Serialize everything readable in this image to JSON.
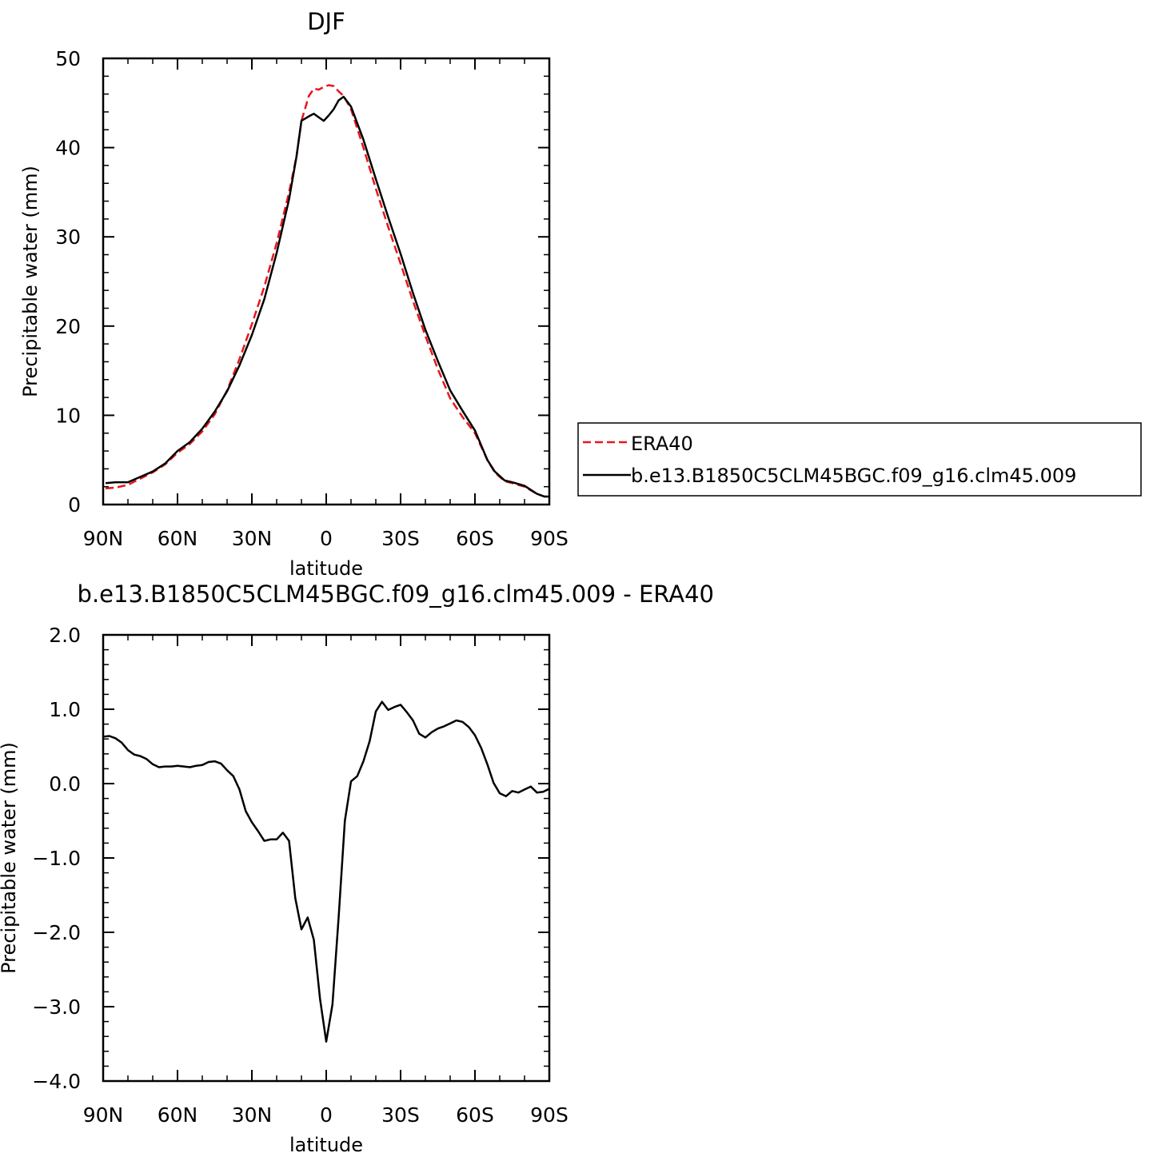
{
  "chart_data": [
    {
      "type": "line",
      "title": "DJF",
      "xlabel": "latitude",
      "ylabel": "Precipitable water (mm)",
      "xlim": [
        90,
        -90
      ],
      "ylim": [
        0,
        50
      ],
      "xticks": [
        90,
        60,
        30,
        0,
        -30,
        -60,
        -90
      ],
      "xtick_labels": [
        "90N",
        "60N",
        "30N",
        "0",
        "30S",
        "60S",
        "90S"
      ],
      "yticks": [
        0,
        10,
        20,
        30,
        40,
        50
      ],
      "ytick_labels": [
        "0",
        "10",
        "20",
        "30",
        "40",
        "50"
      ],
      "grid": false,
      "legend_position": "right",
      "series": [
        {
          "name": "ERA40",
          "color": "#e8161b",
          "dash": "dashed",
          "x": [
            89,
            85,
            80,
            75,
            70,
            65,
            60,
            55,
            50,
            45,
            40,
            35,
            30,
            25,
            20,
            15,
            12,
            10,
            7,
            5,
            3,
            1,
            -1,
            -3,
            -5,
            -7,
            -10,
            -15,
            -20,
            -25,
            -30,
            -35,
            -40,
            -45,
            -50,
            -55,
            -60,
            -65,
            -68,
            -72,
            -75,
            -80,
            -85,
            -88,
            -90
          ],
          "values": [
            1.8,
            1.9,
            2.2,
            2.9,
            3.6,
            4.5,
            5.8,
            6.8,
            8.2,
            10.1,
            12.8,
            16.3,
            20.2,
            24.4,
            29.3,
            35.0,
            39.0,
            43.0,
            45.8,
            46.6,
            46.5,
            46.8,
            47.0,
            46.9,
            46.3,
            45.8,
            44.3,
            40.0,
            35.4,
            31.1,
            27.0,
            22.8,
            18.9,
            15.2,
            11.9,
            9.8,
            8.0,
            5.0,
            3.6,
            2.6,
            2.4,
            2.0,
            1.2,
            0.9,
            0.9
          ]
        },
        {
          "name": "b.e13.B1850C5CLM45BGC.f09_g16.clm45.009",
          "color": "#000000",
          "dash": "solid",
          "x": [
            89,
            85,
            80,
            75,
            70,
            65,
            60,
            55,
            50,
            45,
            40,
            35,
            30,
            25,
            20,
            15,
            12,
            10,
            7,
            5,
            3,
            1,
            -1,
            -3,
            -5,
            -7,
            -10,
            -15,
            -20,
            -25,
            -30,
            -35,
            -40,
            -45,
            -50,
            -55,
            -60,
            -65,
            -68,
            -72,
            -75,
            -80,
            -85,
            -88,
            -90
          ],
          "values": [
            2.4,
            2.5,
            2.5,
            3.1,
            3.7,
            4.6,
            6.0,
            7.0,
            8.5,
            10.4,
            12.7,
            15.6,
            19.0,
            23.0,
            28.2,
            34.2,
            39.0,
            43.0,
            43.5,
            43.8,
            43.4,
            43.0,
            43.6,
            44.3,
            45.3,
            45.7,
            44.6,
            40.9,
            36.5,
            32.2,
            28.1,
            23.7,
            19.6,
            16.1,
            12.8,
            10.5,
            8.3,
            5.0,
            3.7,
            2.7,
            2.5,
            2.1,
            1.2,
            0.9,
            0.9
          ]
        }
      ]
    },
    {
      "type": "line",
      "title": "b.e13.B1850C5CLM45BGC.f09_g16.clm45.009  -  ERA40",
      "xlabel": "latitude",
      "ylabel": "Precipitable water (mm)",
      "xlim": [
        90,
        -90
      ],
      "ylim": [
        -4.0,
        2.0
      ],
      "xticks": [
        90,
        60,
        30,
        0,
        -30,
        -60,
        -90
      ],
      "xtick_labels": [
        "90N",
        "60N",
        "30N",
        "0",
        "30S",
        "60S",
        "90S"
      ],
      "yticks": [
        2.0,
        1.0,
        0.0,
        -1.0,
        -2.0,
        -3.0,
        -4.0
      ],
      "ytick_labels": [
        "2.0",
        "1.0",
        "0.0",
        "−1.0",
        "−2.0",
        "−3.0",
        "−4.0"
      ],
      "grid": false,
      "series": [
        {
          "color": "#000000",
          "dash": "solid",
          "x": [
            90,
            87.5,
            85,
            82.5,
            80,
            77.5,
            75,
            72.5,
            70,
            67.5,
            65,
            62.5,
            60,
            57.5,
            55,
            52.5,
            50,
            47.5,
            45,
            42.5,
            40,
            37.5,
            35,
            32.5,
            30,
            27.5,
            25,
            22.5,
            20,
            17.5,
            15,
            12.5,
            10,
            7.5,
            5,
            2.5,
            0,
            -2.5,
            -5,
            -7.5,
            -10,
            -12.5,
            -15,
            -17.5,
            -20,
            -22.5,
            -25,
            -27.5,
            -30,
            -32.5,
            -35,
            -37.5,
            -40,
            -42.5,
            -45,
            -47.5,
            -50,
            -52.5,
            -55,
            -57.5,
            -60,
            -62.5,
            -65,
            -67.5,
            -70,
            -72.5,
            -75,
            -77.5,
            -80,
            -82.5,
            -85,
            -87.5,
            -90
          ],
          "values": [
            0.63,
            0.64,
            0.61,
            0.55,
            0.45,
            0.39,
            0.37,
            0.33,
            0.26,
            0.22,
            0.23,
            0.23,
            0.24,
            0.23,
            0.22,
            0.24,
            0.25,
            0.29,
            0.3,
            0.27,
            0.18,
            0.1,
            -0.08,
            -0.37,
            -0.52,
            -0.64,
            -0.77,
            -0.75,
            -0.75,
            -0.66,
            -0.77,
            -1.54,
            -1.96,
            -1.8,
            -2.1,
            -2.9,
            -3.47,
            -2.97,
            -1.8,
            -0.5,
            0.03,
            0.1,
            0.3,
            0.57,
            0.97,
            1.1,
            0.99,
            1.03,
            1.06,
            0.96,
            0.85,
            0.67,
            0.62,
            0.69,
            0.74,
            0.77,
            0.81,
            0.85,
            0.83,
            0.76,
            0.65,
            0.48,
            0.26,
            0.01,
            -0.13,
            -0.17,
            -0.1,
            -0.12,
            -0.08,
            -0.04,
            -0.12,
            -0.11,
            -0.07
          ]
        }
      ]
    }
  ]
}
